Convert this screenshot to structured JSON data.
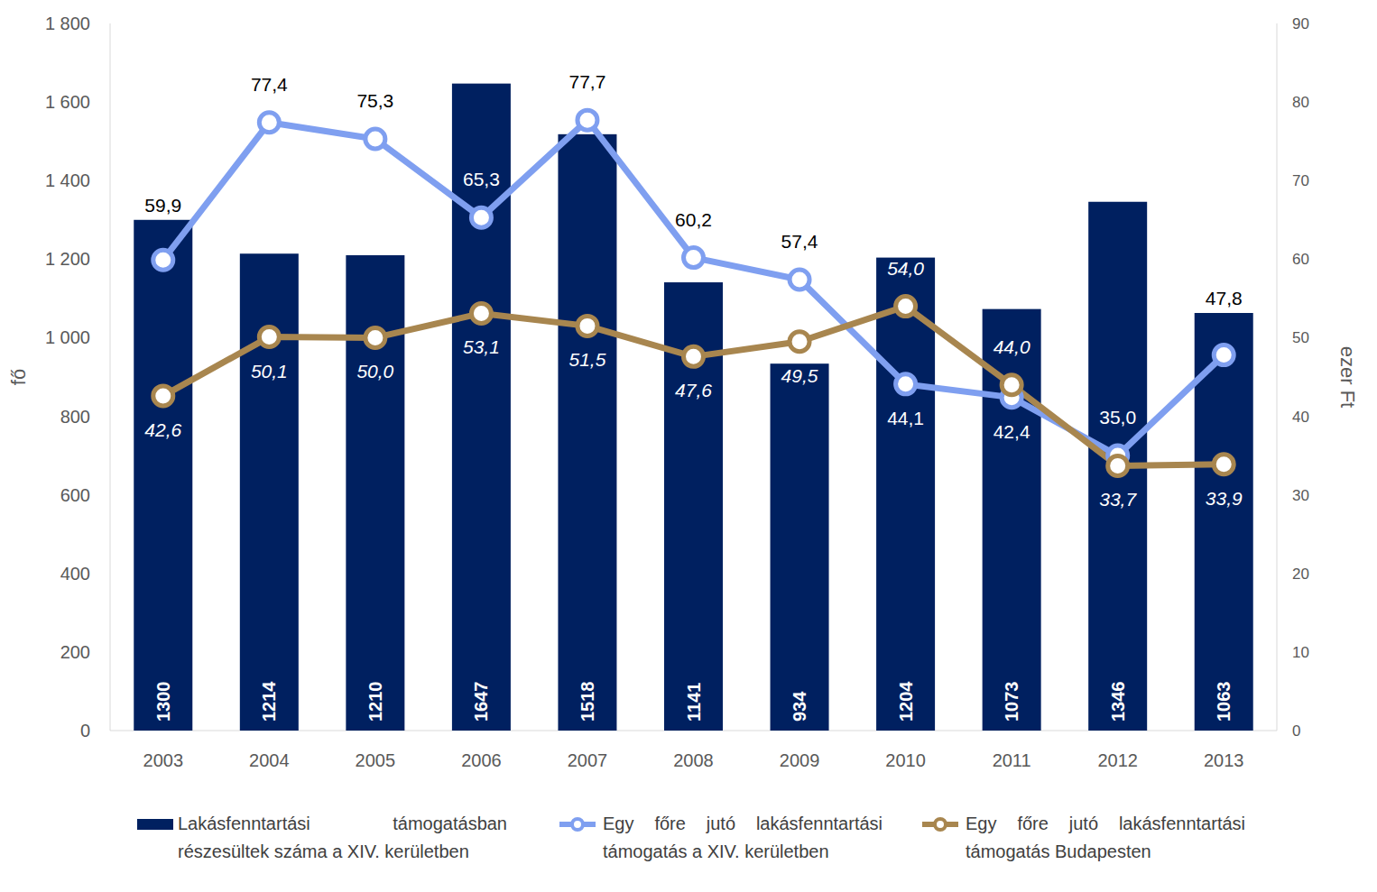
{
  "chart_data": {
    "type": "bar",
    "y_label": "fő",
    "y2_label": "ezer Ft",
    "categories": [
      "2003",
      "2004",
      "2005",
      "2006",
      "2007",
      "2008",
      "2009",
      "2010",
      "2011",
      "2012",
      "2013"
    ],
    "ylim": [
      0,
      1800
    ],
    "yticks": [
      0,
      200,
      400,
      600,
      800,
      {
        "value": 1000,
        "label": "1 000"
      },
      {
        "value": 1200,
        "label": "1 200"
      },
      {
        "value": 1400,
        "label": "1 400"
      },
      {
        "value": 1600,
        "label": "1 600"
      },
      {
        "value": 1800,
        "label": "1 800"
      }
    ],
    "y2lim": [
      0,
      90
    ],
    "y2ticks": [
      0,
      10,
      20,
      30,
      40,
      50,
      60,
      70,
      80,
      90
    ],
    "grid": false,
    "data_labels": true,
    "legend": "bottom",
    "series": [
      {
        "name": "Lakásfenntartási támogatásban részesültek száma a XIV. kerületben",
        "type": "bar",
        "color": "#002060",
        "values": [
          1300,
          1214,
          1210,
          1647,
          1518,
          1141,
          934,
          1204,
          1073,
          1346,
          1063
        ]
      },
      {
        "name": "Egy főre jutó lakásfenntartási támogatás a XIV. kerületben",
        "type": "line",
        "axis": "y2",
        "color": "#7f9ff0",
        "marker": "circle",
        "line_style": "solid",
        "values": [
          59.9,
          77.4,
          75.3,
          65.3,
          77.7,
          60.2,
          57.4,
          44.1,
          42.4,
          35.0,
          47.8
        ],
        "value_labels": [
          "59,9",
          "77,4",
          "75,3",
          "65,3",
          "77,7",
          "60,2",
          "57,4",
          "44,1",
          "42,4",
          "35,0",
          "47,8"
        ]
      },
      {
        "name": "Egy főre jutó lakásfenntartási támogatás Budapesten",
        "type": "line",
        "axis": "y2",
        "color": "#a8864f",
        "marker": "circle",
        "line_style": "solid",
        "values": [
          42.6,
          50.1,
          50.0,
          53.1,
          51.5,
          47.6,
          49.5,
          54.0,
          44.0,
          33.7,
          33.9
        ],
        "value_labels": [
          "42,6",
          "50,1",
          "50,0",
          "53,1",
          "51,5",
          "47,6",
          "49,5",
          "54,0",
          "44,0",
          "33,7",
          "33,9"
        ]
      }
    ]
  }
}
